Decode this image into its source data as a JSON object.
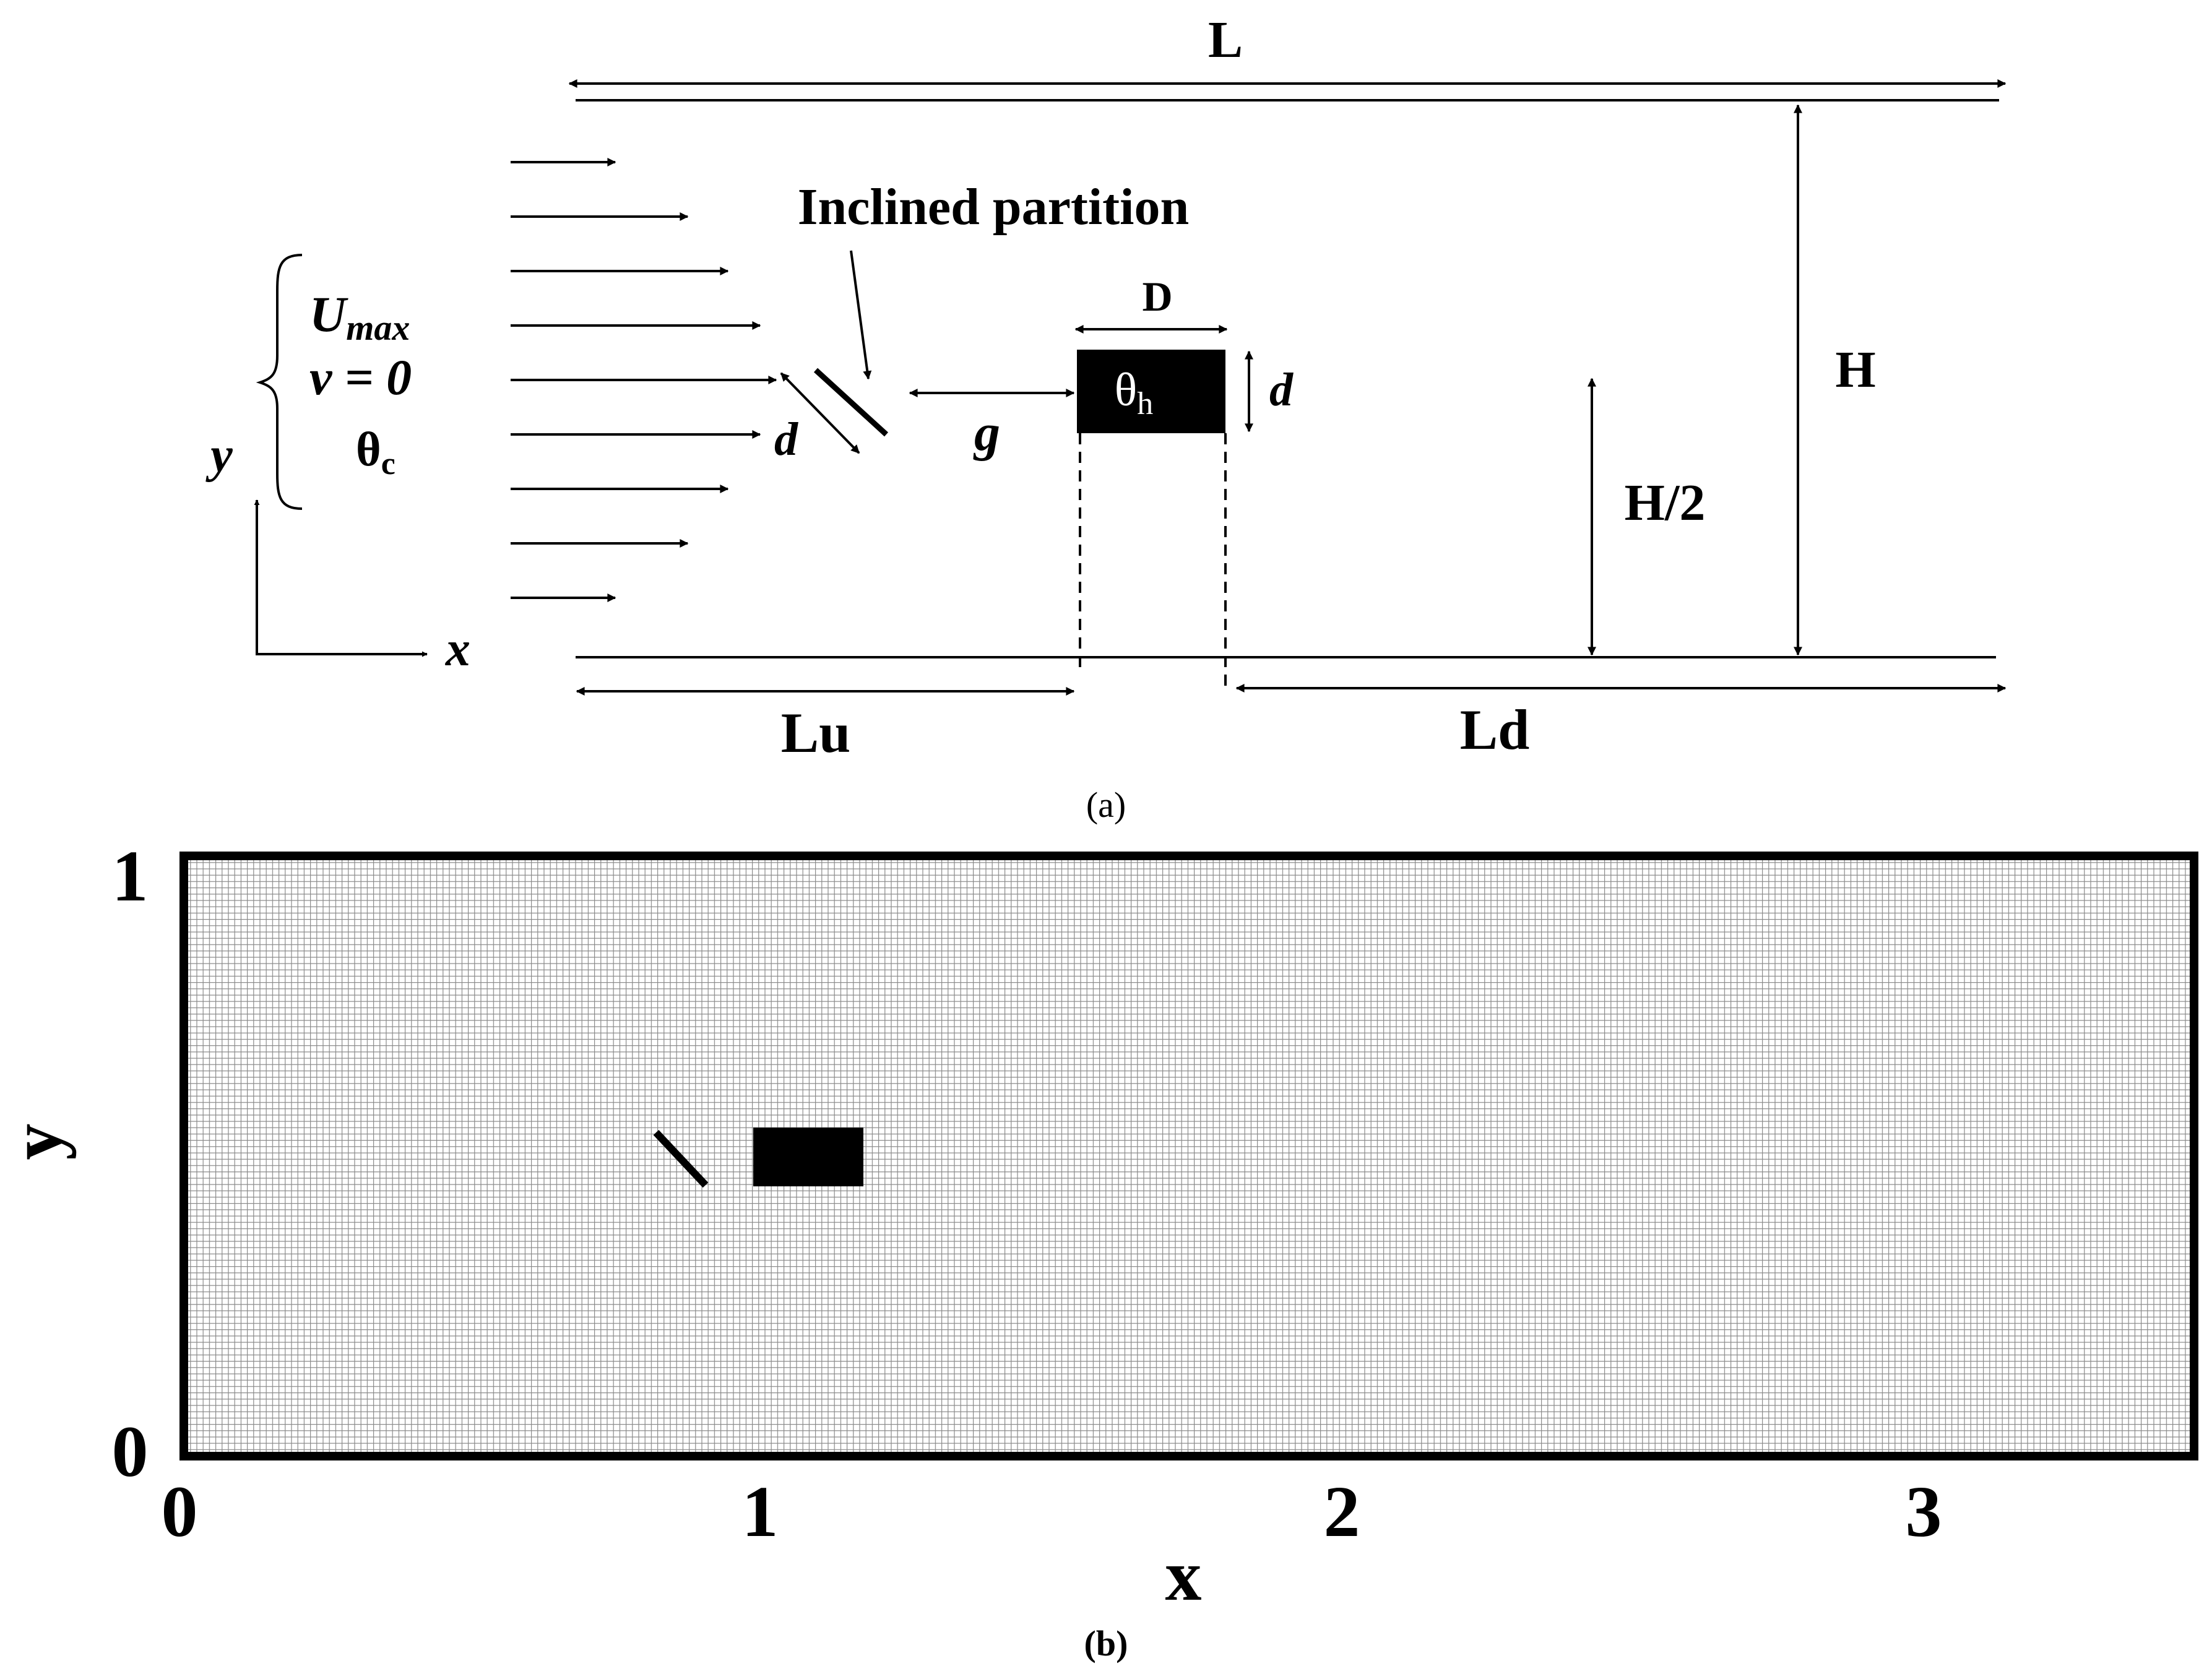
{
  "panel_a": {
    "caption": "(a)",
    "length_label": "L",
    "height_label": "H",
    "half_height_label": "H/2",
    "partition_label": "Inclined partition",
    "block_width_label": "D",
    "block_height_label": "d",
    "partition_length_label": "d",
    "gap_label": "g",
    "block_temp_label": "θ",
    "block_temp_sub": "h",
    "upstream_label": "Lu",
    "downstream_label": "Ld",
    "inlet_velocity": "U",
    "inlet_velocity_sub": "max",
    "inlet_v": "v = 0",
    "inlet_temp": "θ",
    "inlet_temp_sub": "c",
    "axis_y": "y",
    "axis_x": "x",
    "inlet_profile_fractions": [
      0.13,
      0.22,
      0.27,
      0.31,
      0.33,
      0.31,
      0.27,
      0.22,
      0.13
    ]
  },
  "panel_b": {
    "caption": "(b)",
    "x_axis_label": "x",
    "y_axis_label": "y",
    "x_ticks": [
      "0",
      "1",
      "2",
      "3"
    ],
    "y_ticks": [
      "1",
      "0"
    ],
    "domain": {
      "x_range": [
        0,
        3.5
      ],
      "y_range": [
        0,
        1
      ]
    },
    "mesh_color": "#8a8a8a",
    "border_color": "#000000"
  }
}
